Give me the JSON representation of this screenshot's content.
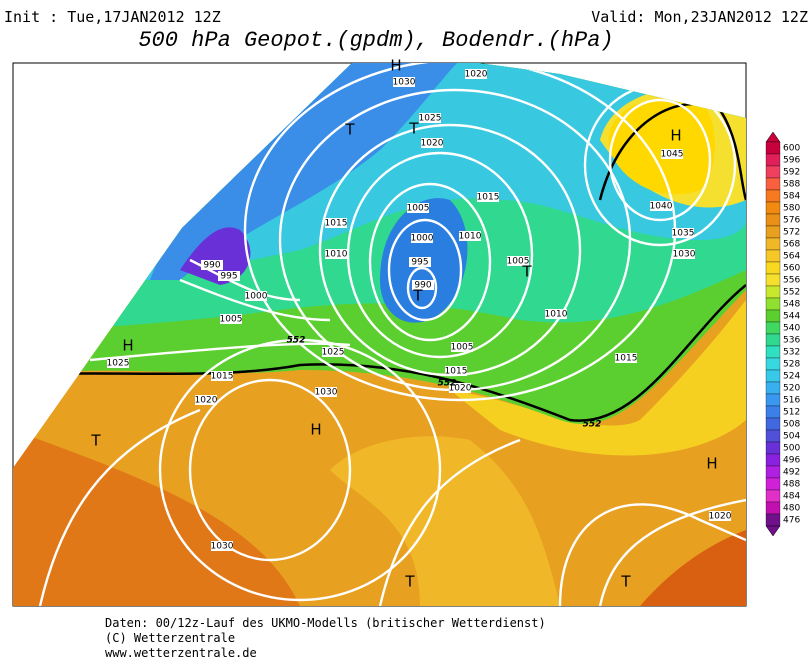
{
  "header": {
    "init": "Init : Tue,17JAN2012 12Z",
    "valid": "Valid: Mon,23JAN2012 12Z",
    "title": "500 hPa Geopot.(gpdm), Bodendr.(hPa)"
  },
  "legend": {
    "labels": [
      600,
      596,
      592,
      588,
      584,
      580,
      576,
      572,
      568,
      564,
      560,
      556,
      552,
      548,
      544,
      540,
      536,
      532,
      528,
      524,
      520,
      516,
      512,
      508,
      504,
      500,
      496,
      492,
      488,
      484,
      480,
      476
    ]
  },
  "map": {
    "isobar_labels": [
      "1020",
      "1030",
      "1025",
      "1020",
      "1015",
      "1015",
      "1005",
      "1010",
      "1000",
      "995",
      "990",
      "1010",
      "1005",
      "1010",
      "990",
      "995",
      "1000",
      "1005",
      "1025",
      "1005",
      "1015",
      "1020",
      "1015",
      "1025",
      "1015",
      "1020",
      "1030",
      "1030",
      "1045",
      "1040",
      "1035",
      "1030",
      "1020"
    ],
    "height_labels": [
      "552",
      "552",
      "552"
    ],
    "centers": [
      "H",
      "T",
      "T",
      "H",
      "T",
      "T",
      "H",
      "H",
      "T",
      "T",
      "T",
      "H"
    ]
  },
  "footer": {
    "lines": [
      "Daten: 00/12z-Lauf des UKMO-Modells (britischer Wetterdienst)",
      "(C) Wetterzentrale",
      "www.wetterzentrale.de"
    ]
  }
}
